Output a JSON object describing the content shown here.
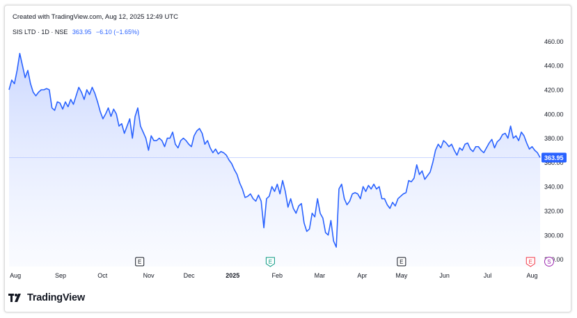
{
  "header": {
    "created_text": "Created with TradingView.com, Aug 12, 2025 12:49 UTC"
  },
  "legend": {
    "symbol": "SIS LTD · 1D · NSE",
    "last": "363.95",
    "change": "−6.10 (−1.65%)"
  },
  "brand": {
    "name": "TradingView"
  },
  "colors": {
    "line": "#2962ff",
    "fill_top": "#c9d6ff",
    "fill_bottom": "#f4f7ff",
    "price_label_bg": "#2962ff",
    "event_earnings": "#131722",
    "event_earnings_alt": "#089981",
    "event_earnings_red": "#f23645",
    "event_split": "#9c27b0"
  },
  "chart_data": {
    "type": "area",
    "title": "",
    "xlabel": "",
    "ylabel": "",
    "ylim": [
      274,
      470
    ],
    "y_ticks": [
      "460.00",
      "440.00",
      "420.00",
      "400.00",
      "380.00",
      "360.00",
      "340.00",
      "320.00",
      "300.00",
      "280.00"
    ],
    "y_tick_values": [
      460,
      440,
      420,
      400,
      380,
      360,
      340,
      320,
      300,
      280
    ],
    "current_price_label": "363.95",
    "current_price": 363.95,
    "x_ticks": [
      "Aug",
      "Sep",
      "Oct",
      "Nov",
      "Dec",
      "2025",
      "Feb",
      "Mar",
      "Apr",
      "May",
      "Jun",
      "Jul",
      "Aug"
    ],
    "x_tick_positions": [
      0.012,
      0.097,
      0.176,
      0.263,
      0.339,
      0.421,
      0.505,
      0.585,
      0.665,
      0.739,
      0.82,
      0.901,
      0.985
    ],
    "events": [
      {
        "label": "E",
        "kind": "earnings",
        "x": 0.246
      },
      {
        "label": "E",
        "kind": "earnings-alt",
        "x": 0.492
      },
      {
        "label": "E",
        "kind": "earnings",
        "x": 0.739
      },
      {
        "label": "E",
        "kind": "earnings-red",
        "x": 0.982
      },
      {
        "label": "S",
        "kind": "split",
        "x": 1.017
      }
    ],
    "series": [
      {
        "values": [
          420,
          428,
          425,
          436,
          450,
          440,
          430,
          436,
          425,
          418,
          415,
          418,
          420,
          420,
          421,
          420,
          405,
          403,
          410,
          409,
          404,
          410,
          406,
          412,
          408,
          415,
          422,
          418,
          412,
          420,
          416,
          422,
          417,
          410,
          402,
          396,
          400,
          405,
          398,
          404,
          400,
          390,
          392,
          384,
          390,
          396,
          380,
          398,
          405,
          390,
          385,
          380,
          370,
          382,
          378,
          378,
          380,
          378,
          373,
          380,
          380,
          385,
          375,
          372,
          378,
          380,
          378,
          375,
          373,
          382,
          386,
          388,
          384,
          375,
          378,
          372,
          368,
          371,
          367,
          369,
          368,
          366,
          362,
          359,
          354,
          350,
          343,
          338,
          331,
          332,
          334,
          330,
          328,
          333,
          328,
          306,
          330,
          332,
          340,
          336,
          342,
          334,
          345,
          336,
          323,
          330,
          322,
          318,
          324,
          326,
          310,
          303,
          305,
          318,
          315,
          330,
          318,
          314,
          302,
          300,
          312,
          295,
          290,
          338,
          342,
          330,
          325,
          328,
          334,
          335,
          334,
          330,
          340,
          336,
          341,
          338,
          342,
          338,
          340,
          330,
          330,
          325,
          322,
          327,
          324,
          330,
          332,
          334,
          335,
          345,
          344,
          347,
          358,
          350,
          353,
          346,
          349,
          352,
          360,
          370,
          375,
          372,
          378,
          376,
          373,
          375,
          370,
          366,
          372,
          370,
          375,
          376,
          371,
          369,
          373,
          373,
          370,
          368,
          372,
          376,
          379,
          372,
          377,
          379,
          383,
          384,
          380,
          390,
          380,
          382,
          378,
          385,
          382,
          376,
          371,
          373,
          370,
          368,
          363.95
        ]
      }
    ]
  }
}
